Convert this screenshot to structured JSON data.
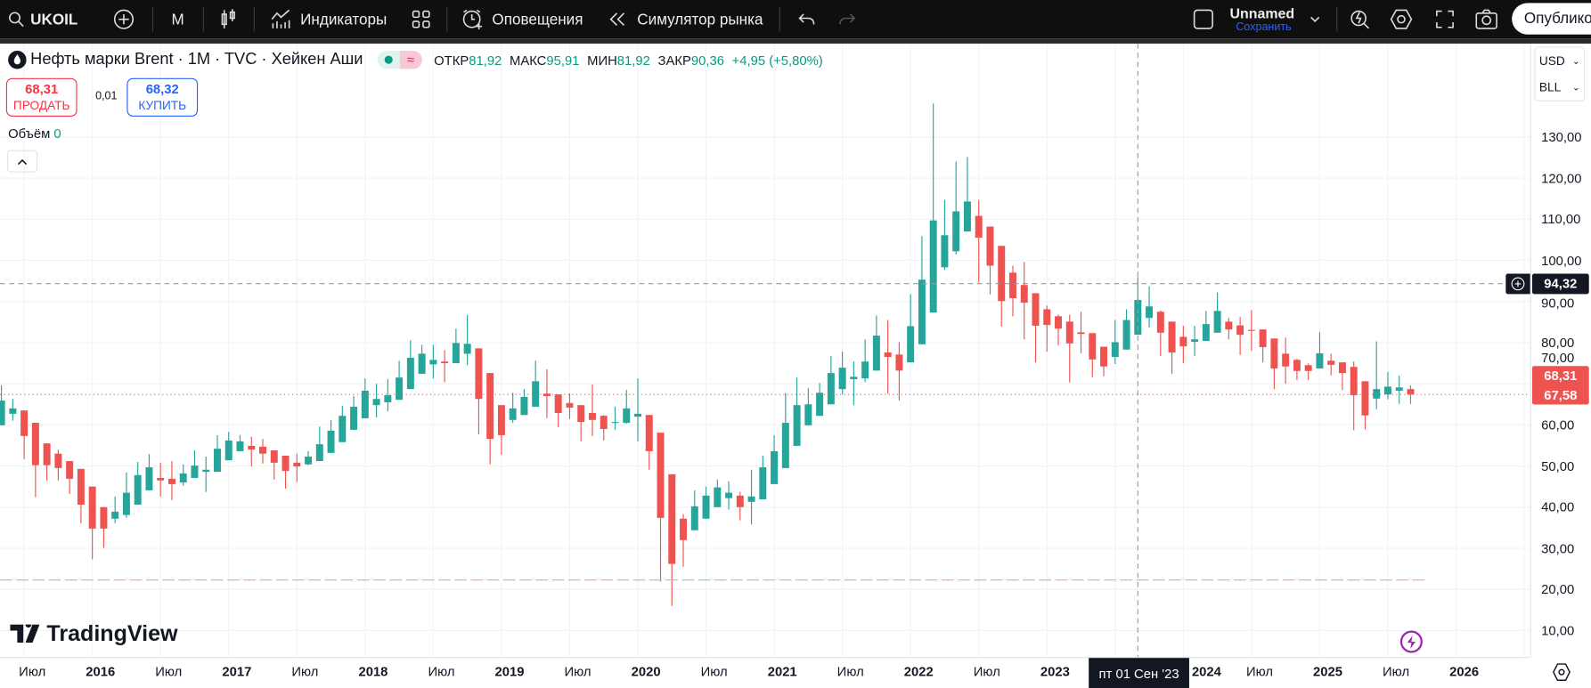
{
  "toolbar": {
    "symbol": "UKOIL",
    "interval": "M",
    "indicators": "Индикаторы",
    "alerts": "Оповещения",
    "replay": "Симулятор рынка",
    "layout_name": "Unnamed",
    "save": "Сохранить",
    "publish": "Опубликовать"
  },
  "legend": {
    "title": "Нефть марки Brent · 1M · TVC · Хейкен Аши",
    "open_label": "ОТКР",
    "open": "81,92",
    "high_label": "МАКС",
    "high": "95,91",
    "low_label": "МИН",
    "low": "81,92",
    "close_label": "ЗАКР",
    "close": "90,36",
    "change": "+4,95 (+5,80%)"
  },
  "trade": {
    "sell_price": "68,31",
    "sell_label": "ПРОДАТЬ",
    "spread": "0,01",
    "buy_price": "68,32",
    "buy_label": "КУПИТЬ"
  },
  "volume": {
    "label": "Объём",
    "value": "0"
  },
  "units": {
    "currency": "USD",
    "unit": "BLL"
  },
  "price_axis": [
    "130,00",
    "120,00",
    "110,00",
    "100,00",
    "90,00",
    "80,00",
    "70,00",
    "60,00",
    "50,00",
    "40,00",
    "30,00",
    "20,00",
    "10,00"
  ],
  "price_axis_values": [
    130,
    120,
    110,
    100,
    90,
    80,
    70,
    60,
    50,
    40,
    30,
    20,
    10
  ],
  "time_axis": [
    {
      "t": "Июл",
      "m": 2,
      "yr": false
    },
    {
      "t": "2016",
      "m": 8,
      "yr": true
    },
    {
      "t": "Июл",
      "m": 14,
      "yr": false
    },
    {
      "t": "2017",
      "m": 20,
      "yr": true
    },
    {
      "t": "Июл",
      "m": 26,
      "yr": false
    },
    {
      "t": "2018",
      "m": 32,
      "yr": true
    },
    {
      "t": "Июл",
      "m": 38,
      "yr": false
    },
    {
      "t": "2019",
      "m": 44,
      "yr": true
    },
    {
      "t": "Июл",
      "m": 50,
      "yr": false
    },
    {
      "t": "2020",
      "m": 56,
      "yr": true
    },
    {
      "t": "Июл",
      "m": 62,
      "yr": false
    },
    {
      "t": "2021",
      "m": 68,
      "yr": true
    },
    {
      "t": "Июл",
      "m": 74,
      "yr": false
    },
    {
      "t": "2022",
      "m": 80,
      "yr": true
    },
    {
      "t": "Июл",
      "m": 86,
      "yr": false
    },
    {
      "t": "2023",
      "m": 92,
      "yr": true
    },
    {
      "t": "2024",
      "m": 104,
      "yr": true
    },
    {
      "t": "Июл",
      "m": 110,
      "yr": false
    },
    {
      "t": "2025",
      "m": 116,
      "yr": true
    },
    {
      "t": "Июл",
      "m": 122,
      "yr": false
    },
    {
      "t": "2026",
      "m": 128,
      "yr": true
    }
  ],
  "crosshair": {
    "price": "94,32",
    "price_value": 94.32,
    "time": "пт 01 Сен '23",
    "index": 100
  },
  "tags": {
    "bid": "68,31",
    "last": "67,58",
    "last_value": 67.58
  },
  "bid_ask_line_value": 22.3,
  "brand": "TradingView",
  "colors": {
    "up": "#26a69a",
    "down": "#ef5350",
    "toolbar": "#0f0f0f",
    "accent": "#2962ff"
  },
  "chart_data": {
    "type": "candlestick-heikin-ashi",
    "title": "Нефть марки Brent · 1M · TVC",
    "start_month": "2015-05",
    "interval": "1M",
    "ylim": [
      5,
      145
    ],
    "fields": [
      "open",
      "high",
      "low",
      "close"
    ],
    "candles": [
      [
        59.9,
        69.6,
        59.9,
        65.9
      ],
      [
        62.7,
        66.3,
        61.0,
        64.0
      ],
      [
        63.5,
        63.5,
        51.7,
        57.3
      ],
      [
        60.5,
        60.5,
        42.4,
        50.2
      ],
      [
        55.5,
        55.5,
        46.5,
        50.2
      ],
      [
        53.0,
        54.0,
        46.5,
        49.5
      ],
      [
        51.2,
        51.2,
        43.2,
        46.9
      ],
      [
        49.3,
        49.3,
        36.1,
        40.6
      ],
      [
        45.0,
        45.0,
        27.3,
        34.8
      ],
      [
        40.0,
        40.0,
        30.1,
        34.8
      ],
      [
        37.2,
        42.6,
        36.1,
        38.9
      ],
      [
        38.1,
        48.4,
        37.4,
        43.5
      ],
      [
        40.6,
        51.0,
        40.6,
        47.8
      ],
      [
        44.1,
        52.9,
        44.1,
        49.7
      ],
      [
        47.1,
        50.8,
        42.6,
        46.5
      ],
      [
        46.9,
        51.2,
        41.7,
        45.6
      ],
      [
        46.0,
        50.4,
        45.2,
        48.2
      ],
      [
        47.1,
        53.8,
        47.1,
        50.1
      ],
      [
        48.6,
        52.3,
        43.7,
        49.1
      ],
      [
        48.6,
        57.5,
        48.6,
        54.2
      ],
      [
        51.4,
        58.3,
        51.4,
        56.2
      ],
      [
        53.6,
        57.5,
        53.6,
        56.0
      ],
      [
        54.9,
        57.1,
        49.9,
        54.0
      ],
      [
        54.7,
        56.6,
        50.6,
        53.0
      ],
      [
        53.8,
        53.8,
        46.7,
        50.8
      ],
      [
        52.5,
        52.5,
        44.5,
        48.8
      ],
      [
        50.8,
        53.0,
        46.1,
        49.9
      ],
      [
        50.4,
        53.6,
        50.2,
        52.3
      ],
      [
        51.2,
        59.6,
        51.2,
        55.3
      ],
      [
        53.2,
        61.2,
        53.2,
        58.6
      ],
      [
        55.8,
        64.6,
        55.8,
        62.2
      ],
      [
        58.8,
        67.0,
        58.8,
        64.4
      ],
      [
        61.6,
        71.3,
        61.6,
        68.3
      ],
      [
        64.8,
        70.0,
        61.8,
        66.3
      ],
      [
        65.5,
        71.1,
        63.3,
        67.2
      ],
      [
        66.1,
        75.6,
        66.1,
        71.5
      ],
      [
        68.7,
        80.6,
        68.7,
        76.3
      ],
      [
        72.4,
        79.5,
        72.4,
        77.3
      ],
      [
        74.7,
        79.5,
        71.3,
        75.8
      ],
      [
        75.4,
        78.2,
        70.4,
        75.0
      ],
      [
        75.0,
        83.4,
        75.0,
        79.9
      ],
      [
        77.3,
        86.8,
        74.5,
        79.7
      ],
      [
        78.6,
        78.6,
        57.7,
        66.3
      ],
      [
        72.6,
        72.6,
        50.4,
        56.6
      ],
      [
        64.8,
        64.8,
        52.7,
        57.5
      ],
      [
        61.2,
        67.8,
        60.5,
        64.0
      ],
      [
        62.4,
        68.7,
        62.4,
        66.8
      ],
      [
        64.4,
        75.6,
        64.4,
        70.6
      ],
      [
        67.6,
        73.5,
        61.6,
        67.0
      ],
      [
        67.4,
        67.4,
        59.4,
        62.9
      ],
      [
        65.3,
        67.6,
        61.4,
        64.2
      ],
      [
        64.8,
        64.8,
        56.0,
        60.7
      ],
      [
        62.9,
        69.8,
        57.3,
        61.2
      ],
      [
        62.2,
        62.4,
        56.2,
        59.0
      ],
      [
        60.5,
        64.4,
        58.8,
        60.7
      ],
      [
        60.5,
        68.5,
        60.3,
        64.0
      ],
      [
        62.0,
        71.3,
        56.0,
        62.7
      ],
      [
        62.4,
        62.4,
        49.1,
        53.6
      ],
      [
        58.1,
        58.1,
        21.9,
        37.4
      ],
      [
        48.0,
        48.0,
        16.0,
        26.2
      ],
      [
        37.2,
        38.3,
        25.5,
        32.0
      ],
      [
        34.4,
        44.1,
        34.4,
        40.2
      ],
      [
        37.2,
        45.0,
        37.2,
        42.8
      ],
      [
        40.0,
        46.7,
        40.0,
        44.8
      ],
      [
        42.2,
        46.3,
        39.4,
        43.5
      ],
      [
        42.8,
        43.7,
        36.8,
        40.0
      ],
      [
        41.3,
        49.1,
        35.8,
        42.6
      ],
      [
        41.9,
        52.5,
        41.9,
        49.7
      ],
      [
        45.6,
        57.5,
        45.6,
        53.6
      ],
      [
        49.5,
        67.8,
        49.5,
        60.5
      ],
      [
        54.9,
        71.5,
        54.9,
        64.8
      ],
      [
        59.9,
        68.9,
        59.9,
        65.0
      ],
      [
        62.2,
        70.2,
        62.2,
        67.8
      ],
      [
        65.0,
        76.7,
        65.0,
        72.6
      ],
      [
        68.7,
        77.8,
        67.4,
        73.9
      ],
      [
        71.1,
        75.4,
        64.8,
        71.7
      ],
      [
        71.3,
        80.8,
        70.4,
        75.4
      ],
      [
        73.2,
        86.6,
        73.2,
        81.7
      ],
      [
        77.6,
        85.5,
        67.6,
        76.5
      ],
      [
        77.1,
        80.1,
        65.9,
        73.2
      ],
      [
        75.2,
        91.8,
        75.2,
        84.0
      ],
      [
        79.6,
        105.9,
        79.6,
        95.3
      ],
      [
        87.3,
        138.1,
        87.3,
        109.7
      ],
      [
        98.3,
        114.7,
        97.7,
        106.1
      ],
      [
        102.2,
        124.0,
        101.4,
        111.9
      ],
      [
        107.0,
        125.1,
        107.0,
        114.3
      ],
      [
        110.8,
        114.7,
        94.6,
        105.5
      ],
      [
        108.2,
        108.2,
        91.7,
        98.7
      ],
      [
        103.5,
        103.5,
        83.9,
        90.1
      ],
      [
        97.0,
        98.7,
        86.4,
        90.8
      ],
      [
        94.0,
        99.6,
        80.8,
        89.7
      ],
      [
        92.0,
        92.0,
        75.2,
        84.1
      ],
      [
        88.1,
        89.0,
        77.8,
        84.3
      ],
      [
        86.4,
        86.8,
        79.3,
        83.4
      ],
      [
        85.1,
        86.8,
        70.3,
        79.8
      ],
      [
        82.5,
        87.5,
        77.4,
        82.1
      ],
      [
        82.3,
        82.3,
        71.6,
        75.9
      ],
      [
        79.0,
        79.0,
        71.8,
        74.2
      ],
      [
        76.5,
        85.5,
        74.8,
        80.1
      ],
      [
        78.3,
        88.1,
        78.3,
        85.5
      ],
      [
        81.92,
        95.91,
        81.92,
        90.36
      ],
      [
        86.0,
        93.7,
        83.7,
        88.8
      ],
      [
        87.5,
        87.8,
        76.7,
        82.4
      ],
      [
        85.1,
        85.1,
        72.4,
        77.6
      ],
      [
        81.4,
        84.1,
        75.0,
        79.1
      ],
      [
        80.2,
        84.1,
        76.7,
        80.8
      ],
      [
        80.4,
        87.7,
        80.4,
        84.5
      ],
      [
        82.4,
        92.2,
        82.4,
        87.7
      ],
      [
        85.1,
        86.0,
        80.8,
        83.2
      ],
      [
        84.2,
        86.2,
        77.0,
        81.9
      ],
      [
        83.1,
        87.9,
        78.0,
        82.9
      ],
      [
        83.2,
        83.2,
        75.2,
        78.9
      ],
      [
        81.0,
        81.0,
        68.7,
        73.7
      ],
      [
        77.3,
        81.2,
        70.0,
        74.2
      ],
      [
        75.8,
        76.1,
        70.9,
        73.1
      ],
      [
        74.5,
        74.9,
        70.9,
        73.1
      ],
      [
        73.7,
        82.5,
        73.7,
        77.4
      ],
      [
        75.6,
        77.3,
        72.0,
        74.6
      ],
      [
        75.2,
        75.2,
        68.5,
        72.6
      ],
      [
        74.1,
        75.4,
        58.7,
        67.2
      ],
      [
        70.6,
        70.6,
        58.9,
        62.3
      ],
      [
        66.4,
        80.3,
        63.8,
        68.7
      ],
      [
        67.4,
        72.9,
        66.2,
        69.3
      ],
      [
        68.3,
        72.0,
        65.1,
        69.1
      ],
      [
        68.7,
        69.6,
        65.1,
        67.4
      ]
    ]
  }
}
